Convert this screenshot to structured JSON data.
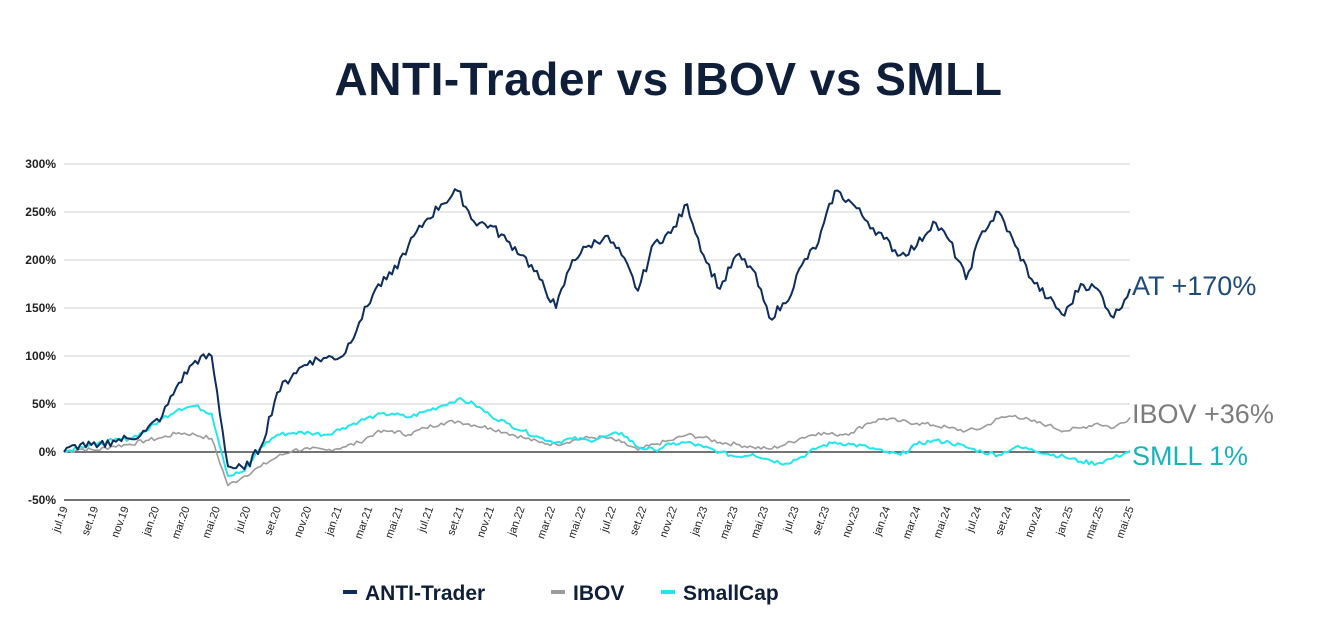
{
  "chart_data": {
    "type": "line",
    "title": "ANTI-Trader vs IBOV vs SMLL",
    "xlabel": "",
    "ylabel": "",
    "ylim": [
      -50,
      300
    ],
    "yticks": [
      300,
      250,
      200,
      150,
      100,
      50,
      0,
      -50
    ],
    "ytick_labels": [
      "300%",
      "250%",
      "200%",
      "150%",
      "100%",
      "50%",
      "0%",
      "-50%"
    ],
    "x_ticks": [
      "jul.19",
      "set.19",
      "nov.19",
      "jan.20",
      "mar.20",
      "mai.20",
      "jul.20",
      "set.20",
      "nov.20",
      "jan.21",
      "mar.21",
      "mai.21",
      "jul.21",
      "set.21",
      "nov.21",
      "jan.22",
      "mar.22",
      "mai.22",
      "jul.22",
      "set.22",
      "nov.22",
      "jan.23",
      "mar.23",
      "mai.23",
      "jul.23",
      "set.23",
      "nov.23",
      "jan.24",
      "mar.24",
      "mai.24",
      "jul.24",
      "set.24",
      "nov.24",
      "jan.25",
      "mar.25",
      "mai.25"
    ],
    "grid": true,
    "legend": "bottom",
    "series": [
      {
        "name": "ANTI-Trader",
        "color": "#0d2d5c",
        "values": [
          0,
          8,
          5,
          12,
          14,
          22,
          38,
          72,
          95,
          100,
          -15,
          -18,
          5,
          62,
          82,
          95,
          98,
          100,
          135,
          170,
          185,
          215,
          240,
          258,
          272,
          240,
          236,
          220,
          205,
          180,
          150,
          200,
          215,
          225,
          205,
          168,
          218,
          228,
          258,
          205,
          170,
          205,
          190,
          140,
          155,
          195,
          218,
          272,
          260,
          240,
          222,
          205,
          215,
          240,
          220,
          180,
          230,
          250,
          215,
          180,
          160,
          142,
          175,
          170,
          140,
          170
        ],
        "end_label": "AT +170%"
      },
      {
        "name": "IBOV",
        "color": "#9b9b9b",
        "values": [
          0,
          3,
          2,
          6,
          8,
          12,
          15,
          20,
          18,
          14,
          -35,
          -25,
          -15,
          -5,
          2,
          3,
          2,
          5,
          10,
          20,
          22,
          18,
          25,
          30,
          32,
          28,
          25,
          20,
          15,
          10,
          8,
          12,
          15,
          15,
          10,
          2,
          8,
          12,
          18,
          15,
          10,
          8,
          5,
          3,
          8,
          15,
          20,
          18,
          20,
          30,
          35,
          32,
          30,
          28,
          25,
          22,
          25,
          35,
          38,
          32,
          28,
          22,
          25,
          30,
          25,
          36
        ],
        "end_label": "IBOV +36%"
      },
      {
        "name": "SmallCap",
        "color": "#22e6ee",
        "values": [
          0,
          6,
          8,
          12,
          14,
          22,
          35,
          45,
          48,
          40,
          -25,
          -20,
          5,
          18,
          20,
          20,
          18,
          25,
          32,
          38,
          40,
          36,
          42,
          48,
          55,
          50,
          38,
          30,
          22,
          15,
          10,
          14,
          12,
          16,
          20,
          5,
          2,
          8,
          10,
          5,
          0,
          -5,
          -2,
          -8,
          -12,
          -5,
          5,
          10,
          8,
          5,
          0,
          -3,
          8,
          12,
          10,
          5,
          0,
          -3,
          5,
          3,
          -2,
          -5,
          -10,
          -12,
          -6,
          1
        ],
        "end_label": "SMLL 1%"
      }
    ]
  }
}
